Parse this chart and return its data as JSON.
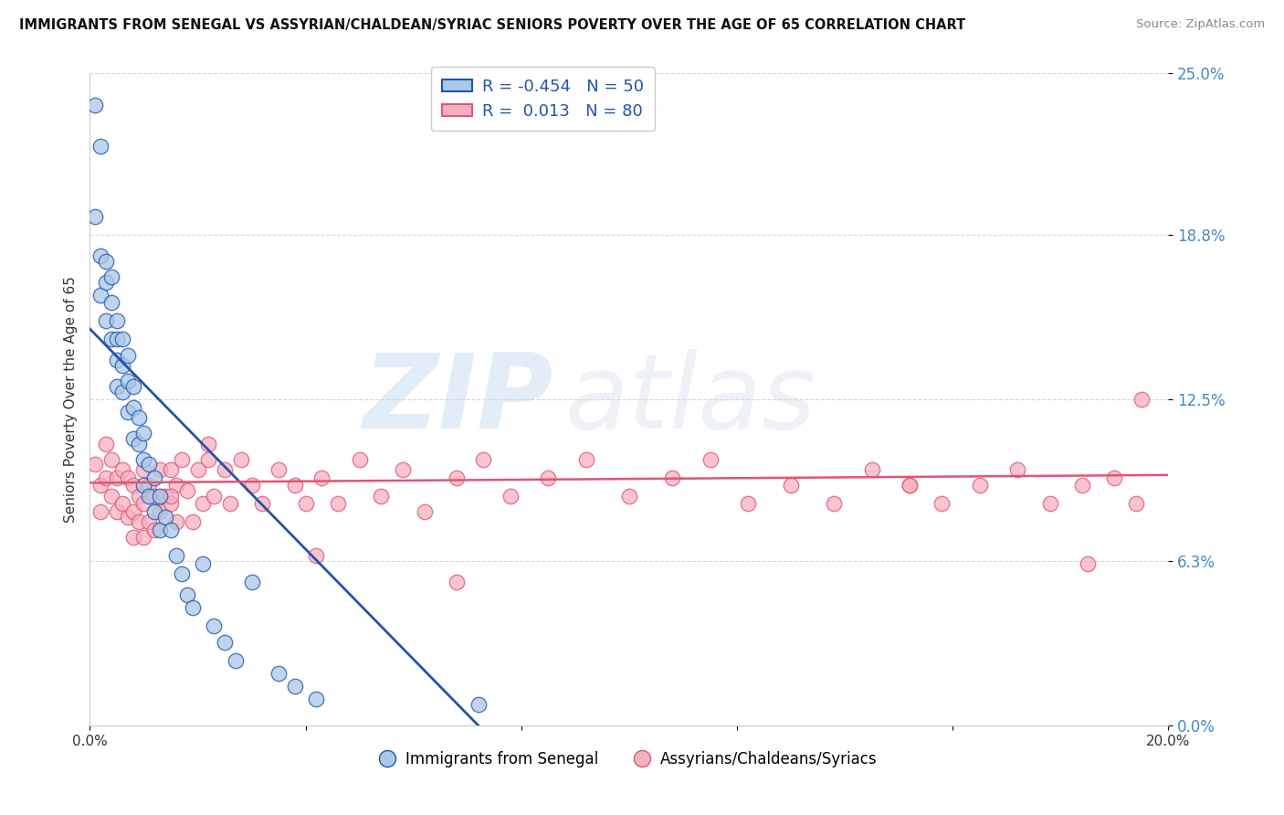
{
  "title": "IMMIGRANTS FROM SENEGAL VS ASSYRIAN/CHALDEAN/SYRIAC SENIORS POVERTY OVER THE AGE OF 65 CORRELATION CHART",
  "source": "Source: ZipAtlas.com",
  "ylabel": "Seniors Poverty Over the Age of 65",
  "xlim": [
    0.0,
    0.2
  ],
  "ylim": [
    0.0,
    0.25
  ],
  "ytick_labels": [
    "0.0%",
    "6.3%",
    "12.5%",
    "18.8%",
    "25.0%"
  ],
  "ytick_values": [
    0.0,
    0.063,
    0.125,
    0.188,
    0.25
  ],
  "xtick_labels": [
    "0.0%",
    "",
    "",
    "",
    "",
    "20.0%"
  ],
  "xtick_values": [
    0.0,
    0.04,
    0.08,
    0.12,
    0.16,
    0.2
  ],
  "R_blue": -0.454,
  "N_blue": 50,
  "R_pink": 0.013,
  "N_pink": 80,
  "blue_color": "#aac8e8",
  "blue_line_color": "#2255aa",
  "pink_color": "#f5b0c0",
  "pink_line_color": "#e05575",
  "legend_label_blue": "Immigrants from Senegal",
  "legend_label_pink": "Assyrians/Chaldeans/Syriacs",
  "watermark_zip": "ZIP",
  "watermark_atlas": "atlas",
  "blue_x": [
    0.001,
    0.002,
    0.001,
    0.002,
    0.002,
    0.003,
    0.003,
    0.003,
    0.004,
    0.004,
    0.004,
    0.005,
    0.005,
    0.005,
    0.005,
    0.006,
    0.006,
    0.006,
    0.007,
    0.007,
    0.007,
    0.008,
    0.008,
    0.008,
    0.009,
    0.009,
    0.01,
    0.01,
    0.01,
    0.011,
    0.011,
    0.012,
    0.012,
    0.013,
    0.013,
    0.014,
    0.015,
    0.016,
    0.017,
    0.018,
    0.019,
    0.021,
    0.023,
    0.025,
    0.027,
    0.03,
    0.035,
    0.038,
    0.042,
    0.072
  ],
  "blue_y": [
    0.238,
    0.222,
    0.195,
    0.18,
    0.165,
    0.178,
    0.17,
    0.155,
    0.172,
    0.162,
    0.148,
    0.155,
    0.148,
    0.14,
    0.13,
    0.148,
    0.138,
    0.128,
    0.142,
    0.132,
    0.12,
    0.13,
    0.122,
    0.11,
    0.118,
    0.108,
    0.112,
    0.102,
    0.092,
    0.1,
    0.088,
    0.095,
    0.082,
    0.088,
    0.075,
    0.08,
    0.075,
    0.065,
    0.058,
    0.05,
    0.045,
    0.062,
    0.038,
    0.032,
    0.025,
    0.055,
    0.02,
    0.015,
    0.01,
    0.008
  ],
  "pink_x": [
    0.001,
    0.002,
    0.002,
    0.003,
    0.003,
    0.004,
    0.004,
    0.005,
    0.005,
    0.006,
    0.006,
    0.007,
    0.007,
    0.008,
    0.008,
    0.008,
    0.009,
    0.009,
    0.01,
    0.01,
    0.01,
    0.011,
    0.011,
    0.012,
    0.012,
    0.013,
    0.013,
    0.014,
    0.015,
    0.015,
    0.016,
    0.016,
    0.017,
    0.018,
    0.019,
    0.02,
    0.021,
    0.022,
    0.023,
    0.025,
    0.026,
    0.028,
    0.03,
    0.032,
    0.035,
    0.038,
    0.04,
    0.043,
    0.046,
    0.05,
    0.054,
    0.058,
    0.062,
    0.068,
    0.073,
    0.078,
    0.085,
    0.092,
    0.1,
    0.108,
    0.115,
    0.122,
    0.13,
    0.138,
    0.145,
    0.152,
    0.158,
    0.165,
    0.172,
    0.178,
    0.184,
    0.19,
    0.194,
    0.152,
    0.068,
    0.042,
    0.022,
    0.015,
    0.185,
    0.195
  ],
  "pink_y": [
    0.1,
    0.092,
    0.082,
    0.108,
    0.095,
    0.102,
    0.088,
    0.095,
    0.082,
    0.098,
    0.085,
    0.095,
    0.08,
    0.092,
    0.082,
    0.072,
    0.088,
    0.078,
    0.098,
    0.085,
    0.072,
    0.092,
    0.078,
    0.088,
    0.075,
    0.098,
    0.082,
    0.088,
    0.098,
    0.085,
    0.092,
    0.078,
    0.102,
    0.09,
    0.078,
    0.098,
    0.085,
    0.102,
    0.088,
    0.098,
    0.085,
    0.102,
    0.092,
    0.085,
    0.098,
    0.092,
    0.085,
    0.095,
    0.085,
    0.102,
    0.088,
    0.098,
    0.082,
    0.095,
    0.102,
    0.088,
    0.095,
    0.102,
    0.088,
    0.095,
    0.102,
    0.085,
    0.092,
    0.085,
    0.098,
    0.092,
    0.085,
    0.092,
    0.098,
    0.085,
    0.092,
    0.095,
    0.085,
    0.092,
    0.055,
    0.065,
    0.108,
    0.088,
    0.062,
    0.125
  ],
  "blue_line_x": [
    0.0,
    0.072
  ],
  "blue_line_y": [
    0.152,
    0.0
  ],
  "pink_line_x": [
    0.0,
    0.2
  ],
  "pink_line_y": [
    0.093,
    0.096
  ]
}
